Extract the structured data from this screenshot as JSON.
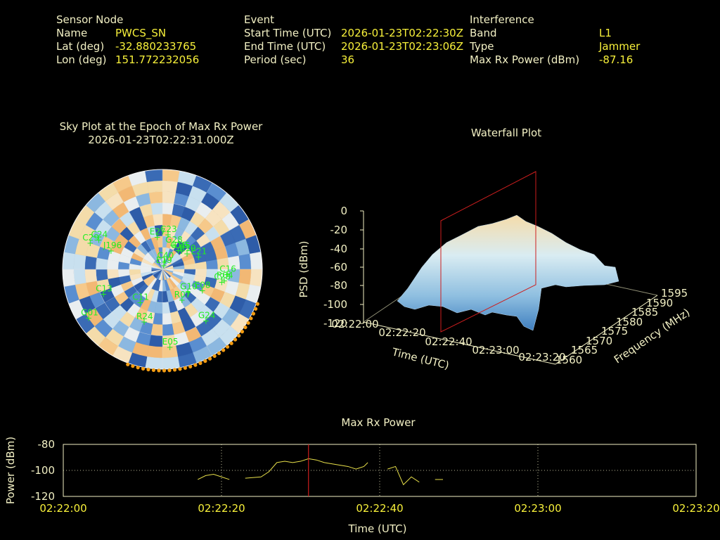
{
  "header": {
    "sensor": {
      "heading": "Sensor Node",
      "rows": [
        {
          "label": "Name",
          "value": "PWCS_SN"
        },
        {
          "label": "Lat (deg)",
          "value": "-32.880233765"
        },
        {
          "label": "Lon (deg)",
          "value": "151.772232056"
        }
      ]
    },
    "event": {
      "heading": "Event",
      "rows": [
        {
          "label": "Start Time (UTC)",
          "value": "2026-01-23T02:22:30Z"
        },
        {
          "label": "End Time (UTC)",
          "value": "2026-01-23T02:23:06Z"
        },
        {
          "label": "Period (sec)",
          "value": "36"
        }
      ]
    },
    "interference": {
      "heading": "Interference",
      "rows": [
        {
          "label": "Band",
          "value": "L1"
        },
        {
          "label": "Type",
          "value": "Jammer"
        },
        {
          "label": "Max Rx Power (dBm)",
          "value": "-87.16"
        }
      ]
    }
  },
  "chart_data": [
    {
      "type": "polar-sky",
      "title": "Sky Plot at the Epoch of Max Rx Power",
      "subtitle": "2026-01-23T02:22:31.000Z",
      "satellites": [
        {
          "id": "G01",
          "az": 237,
          "el": 10
        },
        {
          "id": "E19",
          "az": 8,
          "el": 86
        },
        {
          "id": "C40",
          "az": 12,
          "el": 82
        },
        {
          "id": "G18",
          "az": 38,
          "el": 68
        },
        {
          "id": "C45",
          "az": 44,
          "el": 66
        },
        {
          "id": "R10",
          "az": 56,
          "el": 64
        },
        {
          "id": "E27",
          "az": 350,
          "el": 60
        },
        {
          "id": "C23",
          "az": 8,
          "el": 58
        },
        {
          "id": "G28",
          "az": 22,
          "el": 66
        },
        {
          "id": "E21",
          "az": 70,
          "el": 56
        },
        {
          "id": "C16",
          "az": 94,
          "el": 32
        },
        {
          "id": "R04",
          "az": 100,
          "el": 34
        },
        {
          "id": "C28",
          "az": 102,
          "el": 36
        },
        {
          "id": "E08",
          "az": 118,
          "el": 50
        },
        {
          "id": "G10",
          "az": 132,
          "el": 60
        },
        {
          "id": "R07",
          "az": 148,
          "el": 58
        },
        {
          "id": "G24",
          "az": 140,
          "el": 30
        },
        {
          "id": "E05",
          "az": 175,
          "el": 20
        },
        {
          "id": "R24",
          "az": 200,
          "el": 40
        },
        {
          "id": "C13",
          "az": 248,
          "el": 32
        },
        {
          "id": "C11",
          "az": 215,
          "el": 54
        },
        {
          "id": "J196",
          "az": 290,
          "el": 40
        },
        {
          "id": "C24",
          "az": 295,
          "el": 26
        },
        {
          "id": "C29",
          "az": 290,
          "el": 20
        }
      ]
    },
    {
      "type": "surface-3d",
      "title": "Waterfall Plot",
      "zlabel": "PSD (dBm)",
      "xlabel": "Time (UTC)",
      "ylabel": "Frequency (MHz)",
      "zticks": [
        "0",
        "-20",
        "-40",
        "-60",
        "-80",
        "-100",
        "-120"
      ],
      "xticks": [
        "02:22:00",
        "02:22:20",
        "02:22:40",
        "02:23:00",
        "02:23:20"
      ],
      "yticks": [
        "1560",
        "1565",
        "1570",
        "1575",
        "1580",
        "1585",
        "1590",
        "1595"
      ]
    },
    {
      "type": "line",
      "title": "Max Rx Power",
      "xlabel": "Time (UTC)",
      "ylabel": "Power (dBm)",
      "ylim": [
        -120,
        -80
      ],
      "yticks": [
        "-80",
        "-100",
        "-120"
      ],
      "xticks": [
        "02:22:00",
        "02:22:20",
        "02:22:40",
        "02:23:00",
        "02:23:20"
      ],
      "color": "#e8e04a",
      "marker_time_sec": 31,
      "marker_color": "#cc1e1e",
      "segments": [
        [
          [
            17,
            -107
          ],
          [
            18,
            -104
          ],
          [
            19,
            -103
          ],
          [
            20,
            -105
          ],
          [
            21,
            -107
          ]
        ],
        [
          [
            23,
            -106
          ],
          [
            25,
            -105
          ],
          [
            26,
            -101
          ],
          [
            27,
            -94
          ],
          [
            28,
            -93
          ],
          [
            29,
            -94
          ],
          [
            30,
            -93
          ],
          [
            31,
            -91
          ],
          [
            32,
            -92
          ],
          [
            33,
            -94
          ],
          [
            34,
            -95
          ],
          [
            35,
            -96
          ],
          [
            36,
            -97
          ],
          [
            37,
            -99
          ],
          [
            38,
            -97
          ],
          [
            38.5,
            -94
          ]
        ],
        [
          [
            41,
            -99
          ],
          [
            42,
            -97
          ],
          [
            43,
            -111
          ],
          [
            44,
            -105
          ],
          [
            45,
            -109
          ]
        ],
        [
          [
            47,
            -107
          ],
          [
            48,
            -107
          ]
        ]
      ]
    }
  ]
}
